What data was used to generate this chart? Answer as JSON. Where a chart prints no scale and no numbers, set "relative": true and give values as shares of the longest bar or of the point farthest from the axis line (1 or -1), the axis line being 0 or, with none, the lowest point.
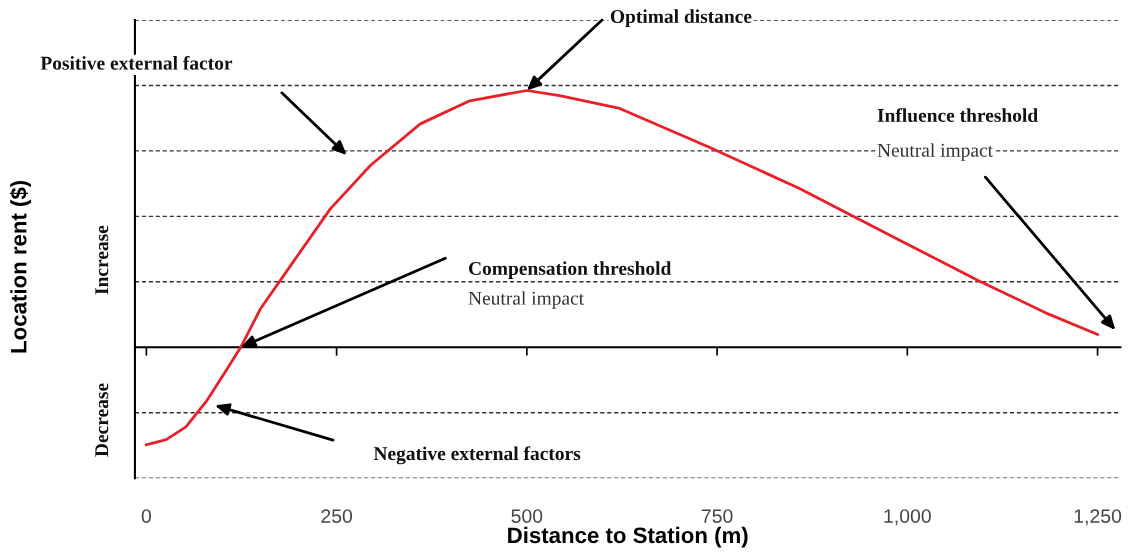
{
  "chart_data": {
    "type": "line",
    "relative": true,
    "xlabel": "Distance to Station (m)",
    "ylabel": "Location rent ($)",
    "x": [
      0,
      26,
      52,
      79,
      105,
      124,
      150,
      190,
      242,
      295,
      360,
      425,
      500,
      543,
      622,
      739,
      857,
      988,
      1093,
      1185,
      1250
    ],
    "series": [
      {
        "color": "#e8202a",
        "values": [
          -0.38,
          -0.36,
          -0.31,
          -0.21,
          -0.09,
          0,
          0.15,
          0.32,
          0.54,
          0.71,
          0.87,
          0.96,
          1,
          0.98,
          0.93,
          0.78,
          0.62,
          0.42,
          0.26,
          0.13,
          0.05
        ]
      }
    ],
    "xlim": [
      -15,
      1280
    ],
    "xticks": [
      0,
      250,
      500,
      750,
      {
        "value": 1000,
        "label": "1,000"
      },
      {
        "value": 1250,
        "label": "1,250"
      }
    ],
    "grid": "y",
    "marker": "none",
    "line_style": "solid",
    "annotations": [
      {
        "text": "Optimal distance",
        "x": 500,
        "y": 1
      },
      "Positive external factor",
      {
        "text": "Compensation threshold",
        "x": 124,
        "y": 0
      },
      "Neutral impact",
      "Influence threshold",
      "Neutral impact",
      "Negative external factors",
      "Increase",
      "Decrease"
    ]
  }
}
